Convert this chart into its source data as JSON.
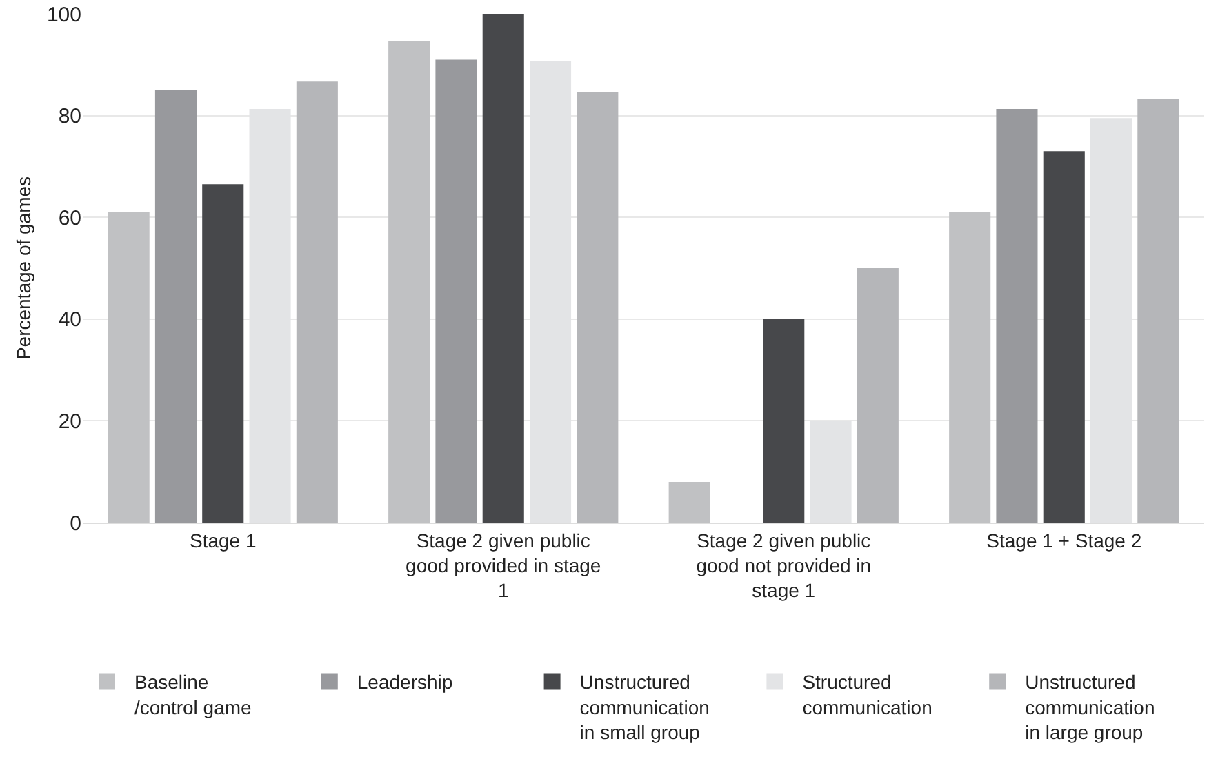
{
  "chart_data": {
    "type": "bar",
    "ylabel": "Percentage of games",
    "categories": [
      "Stage 1",
      "Stage 2 given public good provided in stage 1",
      "Stage 2 given public good not provided in stage 1",
      "Stage 1 + Stage 2"
    ],
    "series": [
      {
        "name": "Baseline /control game",
        "color": "#c0c1c3",
        "values": [
          61,
          94.7,
          8,
          61
        ]
      },
      {
        "name": "Leadership",
        "color": "#98999d",
        "values": [
          85,
          91,
          0,
          81.3
        ]
      },
      {
        "name": "Unstructured communication in small group",
        "color": "#47484b",
        "values": [
          66.5,
          100,
          40,
          73
        ]
      },
      {
        "name": "Structured communication",
        "color": "#e3e4e6",
        "values": [
          81.3,
          90.8,
          20,
          79.5
        ]
      },
      {
        "name": "Unstructured communication in large group",
        "color": "#b5b6b9",
        "values": [
          86.7,
          84.6,
          50,
          83.3
        ]
      }
    ],
    "ylim": [
      0,
      100
    ],
    "yticks": [
      0,
      20,
      40,
      60,
      80,
      100
    ],
    "grid": "y",
    "legend": "bottom"
  }
}
